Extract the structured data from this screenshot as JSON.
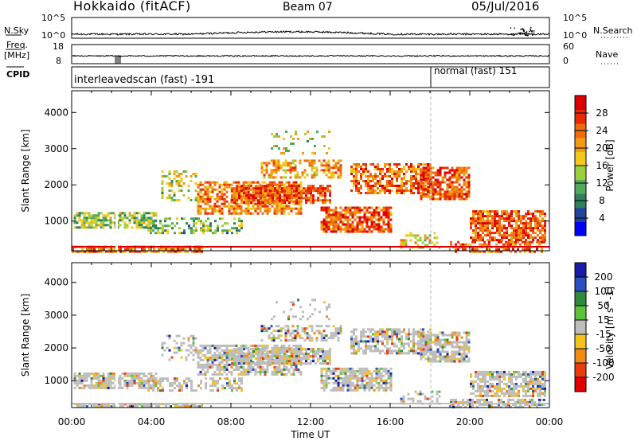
{
  "header": {
    "station": "Hokkaido (fitACF)",
    "beam": "Beam 07",
    "date": "05/Jul/2016"
  },
  "top_panels": {
    "nsky_label": "N.Sky",
    "nsearch_label": "N.Search",
    "nsky_ticks": [
      "10^5",
      "10^0"
    ],
    "nsearch_ticks": [
      "10^5",
      "10^0"
    ],
    "freq_label_1": "Freq.",
    "freq_label_2": "[MHz]",
    "freq_ticks": [
      "18",
      "8"
    ],
    "nave_label": "Nave",
    "nave_ticks": [
      "60",
      "0"
    ],
    "cpid_label": "CPID",
    "cpid_1": "interleavedscan (fast) -191",
    "cpid_2": "normal (fast) 151"
  },
  "chart_data": [
    {
      "type": "heatmap",
      "panel": "power",
      "ylabel": "Slant Range [km]",
      "xlabel": "Time UT",
      "x_ticks": [
        "00:00",
        "04:00",
        "08:00",
        "12:00",
        "16:00",
        "20:00",
        "00:00"
      ],
      "y_ticks": [
        1000,
        2000,
        3000,
        4000
      ],
      "ylim": [
        180,
        4600
      ],
      "xlim_hours": [
        0,
        24
      ],
      "colorbar_label": "Power [dB]",
      "colorbar_ticks": [
        4,
        8,
        12,
        16,
        20,
        24,
        28
      ],
      "colorbar_range": [
        0,
        32
      ],
      "colorbar_colors": [
        "#0000ff",
        "#224499",
        "#2e7f5b",
        "#52a95a",
        "#9ccf3f",
        "#f2c91a",
        "#f29a12",
        "#ef6c0c",
        "#e82a05",
        "#dd0000"
      ]
    },
    {
      "type": "heatmap",
      "panel": "velocity",
      "ylabel": "Slant Range [km]",
      "xlabel": "Time UT",
      "x_ticks": [
        "00:00",
        "04:00",
        "08:00",
        "12:00",
        "16:00",
        "20:00",
        "00:00"
      ],
      "y_ticks": [
        1000,
        2000,
        3000,
        4000
      ],
      "ylim": [
        180,
        4600
      ],
      "xlim_hours": [
        0,
        24
      ],
      "colorbar_label": "Velocity [m s^-1]",
      "colorbar_ticks": [
        "200",
        "100",
        "50",
        "15",
        "-15",
        "-50",
        "-100",
        "-200"
      ],
      "colorbar_colors": [
        "#1a1aa8",
        "#2b4fc0",
        "#2f8a3e",
        "#5cc23a",
        "#bdbdbd",
        "#f2c31d",
        "#f08a10",
        "#ec3b0a",
        "#e00000"
      ]
    }
  ]
}
